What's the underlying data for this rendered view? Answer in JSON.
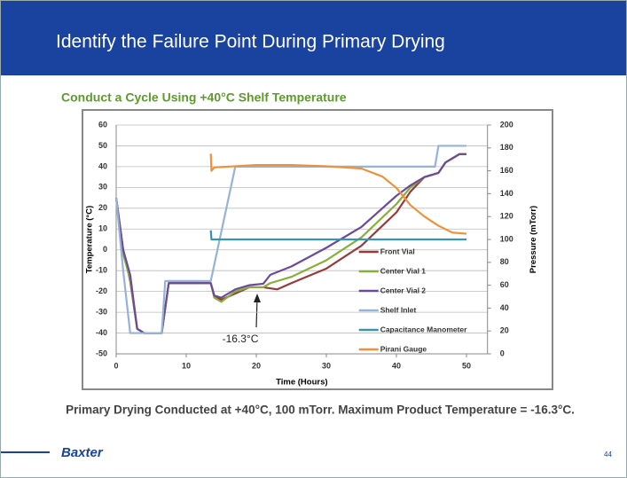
{
  "header": {
    "title": "Identify the Failure Point During Primary Drying"
  },
  "subtitle": "Conduct a Cycle Using +40°C Shelf Temperature",
  "chart_data": {
    "type": "line",
    "xlabel": "Time (Hours)",
    "ylabel": "Temperature (°C)",
    "y2label": "Pressure (mTorr)",
    "xlim": [
      0,
      53
    ],
    "xticks": [
      0,
      10,
      20,
      30,
      40,
      50
    ],
    "ylim": [
      -50,
      60
    ],
    "yticks": [
      -50,
      -40,
      -30,
      -20,
      -10,
      0,
      10,
      20,
      30,
      40,
      50,
      60
    ],
    "y2lim": [
      0,
      200
    ],
    "y2ticks": [
      0,
      20,
      40,
      60,
      80,
      100,
      120,
      140,
      160,
      180,
      200
    ],
    "grid": true,
    "legend": "lower right",
    "annotation": "-16.3°C",
    "series": [
      {
        "name": "Front Vial",
        "color": "#993a3a",
        "x": [
          0,
          1,
          2,
          3,
          4,
          6.5,
          7.5,
          13.5,
          14,
          15,
          17,
          19,
          21,
          23,
          25,
          30,
          35,
          40,
          42,
          44,
          46,
          47,
          49,
          50
        ],
        "values": [
          25,
          0,
          -15,
          -38,
          -40,
          -40,
          -16,
          -16,
          -22,
          -24,
          -21,
          -18,
          -18,
          -19,
          -16,
          -9,
          2,
          18,
          28,
          35,
          37,
          42,
          46,
          46
        ]
      },
      {
        "name": "Center Vial 1",
        "color": "#86b03a",
        "x": [
          0,
          1,
          2,
          3,
          4,
          6.5,
          7.5,
          13.5,
          14,
          15,
          17,
          19,
          21,
          22,
          25,
          30,
          35,
          40,
          42,
          44,
          46,
          47,
          49,
          50
        ],
        "values": [
          25,
          -2,
          -14,
          -38,
          -40,
          -40,
          -16,
          -16,
          -23,
          -25,
          -20,
          -18,
          -18,
          -16,
          -13,
          -5,
          6,
          22,
          30,
          35,
          37,
          42,
          46,
          46
        ]
      },
      {
        "name": "Center Vial 2",
        "color": "#6b4a9a",
        "x": [
          0,
          1,
          2,
          3,
          4,
          6.5,
          7.5,
          13.5,
          14,
          15,
          17,
          19,
          21,
          22,
          25,
          30,
          35,
          38,
          40,
          42,
          44,
          46,
          47,
          49,
          50
        ],
        "values": [
          25,
          0,
          -12,
          -38,
          -40,
          -40,
          -16,
          -16,
          -22,
          -23,
          -19,
          -17,
          -16.3,
          -12,
          -8,
          1,
          11,
          20,
          26,
          31,
          35,
          37,
          42,
          46,
          46
        ]
      },
      {
        "name": "Shelf Inlet",
        "color": "#95b3d7",
        "x": [
          0,
          1,
          2,
          6.5,
          7,
          13.5,
          17,
          45.5,
          46,
          50
        ],
        "values": [
          25,
          -10,
          -40,
          -40,
          -15,
          -15,
          40,
          40,
          50,
          50
        ]
      },
      {
        "name": "Capacitance Manometer",
        "color": "#3a93b0",
        "axis": "y2",
        "x": [
          13.5,
          13.6,
          20,
          30,
          40,
          50
        ],
        "values": [
          108,
          100,
          100,
          100,
          100,
          100
        ]
      },
      {
        "name": "Pirani Gauge",
        "color": "#f0913a",
        "axis": "y2",
        "x": [
          13.5,
          13.6,
          14,
          20,
          25,
          30,
          35,
          38,
          40,
          42,
          44,
          46,
          48,
          50
        ],
        "values": [
          175,
          160,
          163,
          165,
          165,
          164,
          162,
          155,
          145,
          130,
          120,
          112,
          106,
          105
        ]
      }
    ]
  },
  "caption": "Primary Drying Conducted at +40°C, 100 mTorr.  Maximum Product Temperature = -16.3°C.",
  "footer": {
    "logo": "Baxter",
    "page": "44"
  }
}
